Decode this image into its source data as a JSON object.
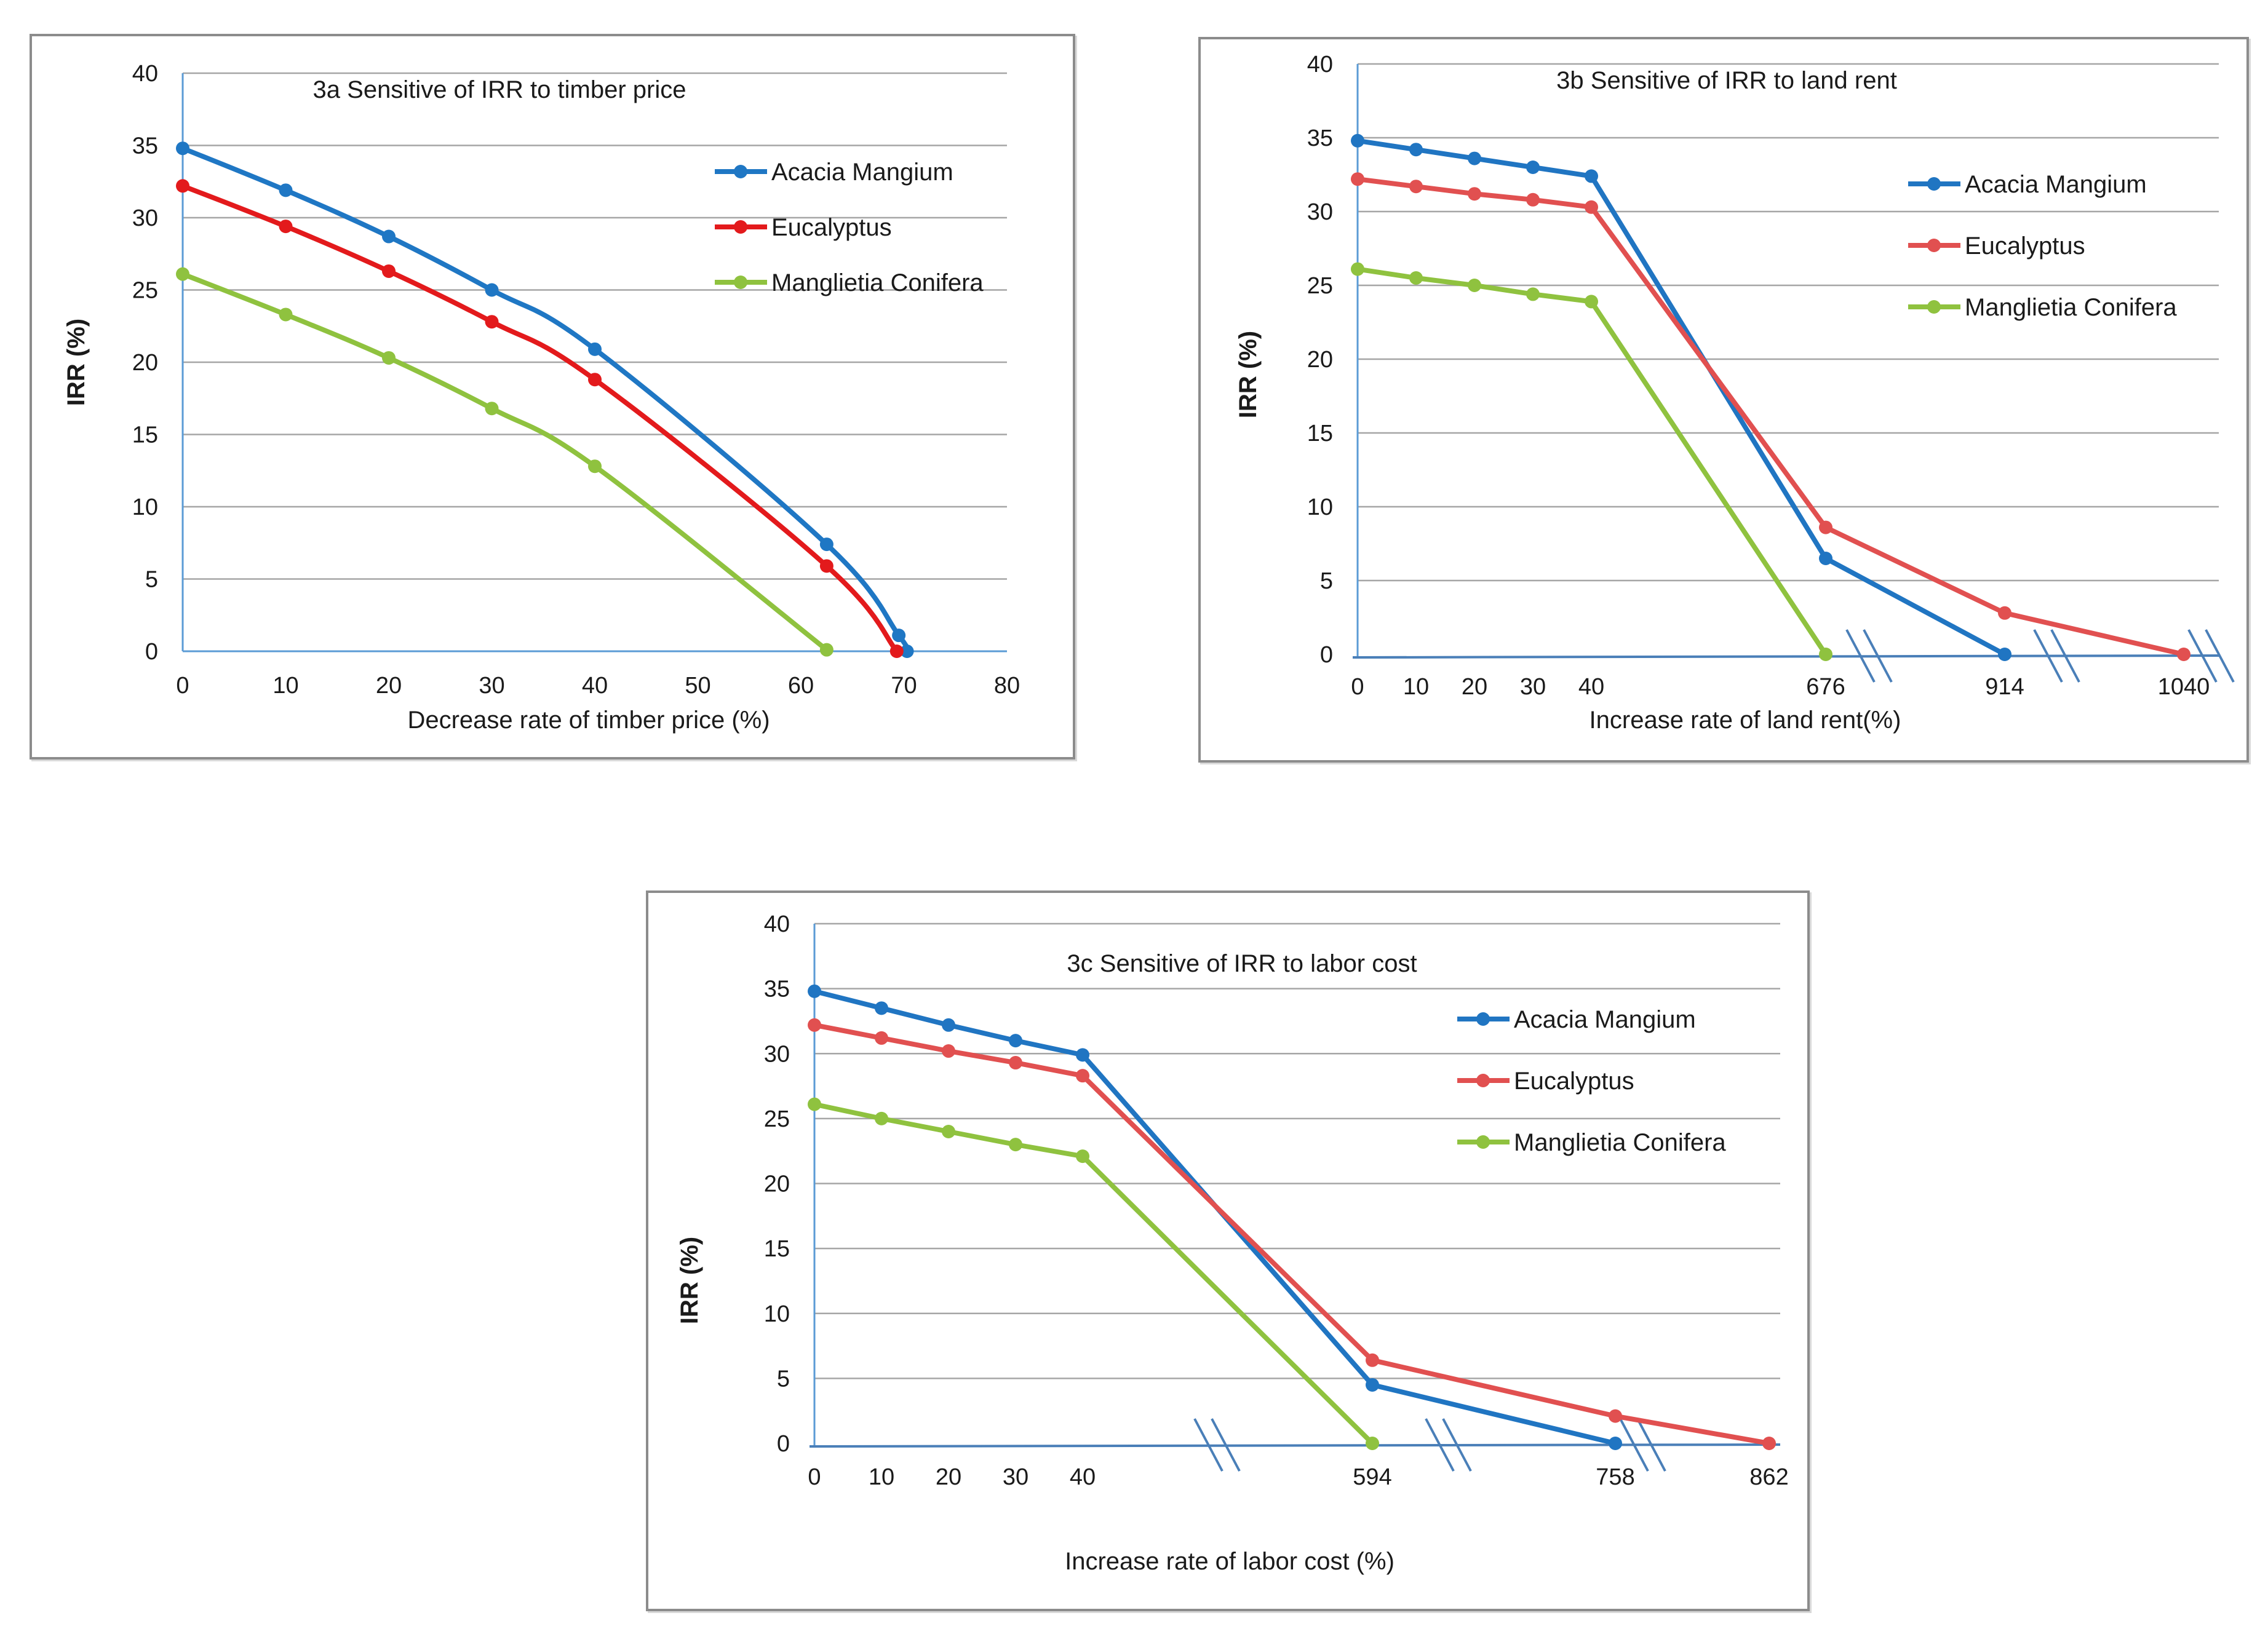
{
  "chart_data": [
    {
      "id": "3a",
      "type": "line",
      "title": "3a Sensitive of IRR to timber price",
      "xlabel": "Decrease rate of timber price (%)",
      "ylabel": "IRR (%)",
      "xlim": [
        0,
        80
      ],
      "ylim": [
        0,
        40
      ],
      "x_ticks": [
        "0",
        "10",
        "20",
        "30",
        "40",
        "50",
        "60",
        "70",
        "80"
      ],
      "y_ticks": [
        "0",
        "5",
        "10",
        "15",
        "20",
        "25",
        "30",
        "35",
        "40"
      ],
      "grid": true,
      "smooth": true,
      "legend_position": "right",
      "series": [
        {
          "name": "Acacia Mangium",
          "color": "#1f77c4",
          "x": [
            0,
            10,
            20,
            30,
            40,
            62.5,
            69.5,
            70.3
          ],
          "y": [
            34.8,
            31.9,
            28.7,
            25.0,
            20.9,
            7.4,
            1.1,
            0
          ]
        },
        {
          "name": "Eucalyptus",
          "color": "#e31a1c",
          "x": [
            0,
            10,
            20,
            30,
            40,
            62.5,
            69.3
          ],
          "y": [
            32.2,
            29.4,
            26.3,
            22.8,
            18.8,
            5.9,
            0
          ]
        },
        {
          "name": "Manglietia Conifera",
          "color": "#8fc23f",
          "x": [
            0,
            10,
            20,
            30,
            40,
            62.5
          ],
          "y": [
            26.1,
            23.3,
            20.3,
            16.8,
            12.8,
            0.1
          ]
        }
      ]
    },
    {
      "id": "3b",
      "type": "line",
      "title": "3b Sensitive of IRR to land rent",
      "xlabel": "Increase rate of land rent(%)",
      "ylabel": "IRR (%)",
      "ylim": [
        0,
        40
      ],
      "x_ticks": [
        "0",
        "10",
        "20",
        "30",
        "40",
        "676",
        "914",
        "1040"
      ],
      "y_ticks": [
        "0",
        "5",
        "10",
        "15",
        "20",
        "25",
        "30",
        "35",
        "40"
      ],
      "axis_breaks": true,
      "grid": true,
      "smooth": false,
      "legend_position": "right",
      "series": [
        {
          "name": "Acacia Mangium",
          "color": "#2075c2",
          "x": [
            "0",
            "10",
            "20",
            "30",
            "40",
            "676",
            "914"
          ],
          "y": [
            34.8,
            34.2,
            33.6,
            33.0,
            32.4,
            6.5,
            0
          ]
        },
        {
          "name": "Eucalyptus",
          "color": "#e15050",
          "x": [
            "0",
            "10",
            "20",
            "30",
            "40",
            "676",
            "914",
            "1040"
          ],
          "y": [
            32.2,
            31.7,
            31.2,
            30.8,
            30.3,
            8.6,
            2.8,
            0
          ]
        },
        {
          "name": "Manglietia Conifera",
          "color": "#8fc23f",
          "x": [
            "0",
            "10",
            "20",
            "30",
            "40",
            "676"
          ],
          "y": [
            26.1,
            25.5,
            25.0,
            24.4,
            23.9,
            0
          ]
        }
      ]
    },
    {
      "id": "3c",
      "type": "line",
      "title": "3c Sensitive of IRR to labor cost",
      "xlabel": "Increase rate of labor cost (%)",
      "ylabel": "IRR (%)",
      "ylim": [
        0,
        40
      ],
      "x_ticks": [
        "0",
        "10",
        "20",
        "30",
        "40",
        "594",
        "758",
        "862"
      ],
      "y_ticks": [
        "0",
        "5",
        "10",
        "15",
        "20",
        "25",
        "30",
        "35",
        "40"
      ],
      "axis_breaks": true,
      "grid": true,
      "smooth": false,
      "legend_position": "right",
      "series": [
        {
          "name": "Acacia Mangium",
          "color": "#2075c2",
          "x": [
            "0",
            "10",
            "20",
            "30",
            "40",
            "594",
            "758"
          ],
          "y": [
            34.8,
            33.5,
            32.2,
            31.0,
            29.9,
            4.5,
            0
          ]
        },
        {
          "name": "Eucalyptus",
          "color": "#e15050",
          "x": [
            "0",
            "10",
            "20",
            "30",
            "40",
            "594",
            "758",
            "862"
          ],
          "y": [
            32.2,
            31.2,
            30.2,
            29.3,
            28.3,
            6.4,
            2.1,
            0
          ]
        },
        {
          "name": "Manglietia Conifera",
          "color": "#8fc23f",
          "x": [
            "0",
            "10",
            "20",
            "30",
            "40",
            "594"
          ],
          "y": [
            26.1,
            25.0,
            24.0,
            23.0,
            22.1,
            0
          ]
        }
      ]
    }
  ]
}
